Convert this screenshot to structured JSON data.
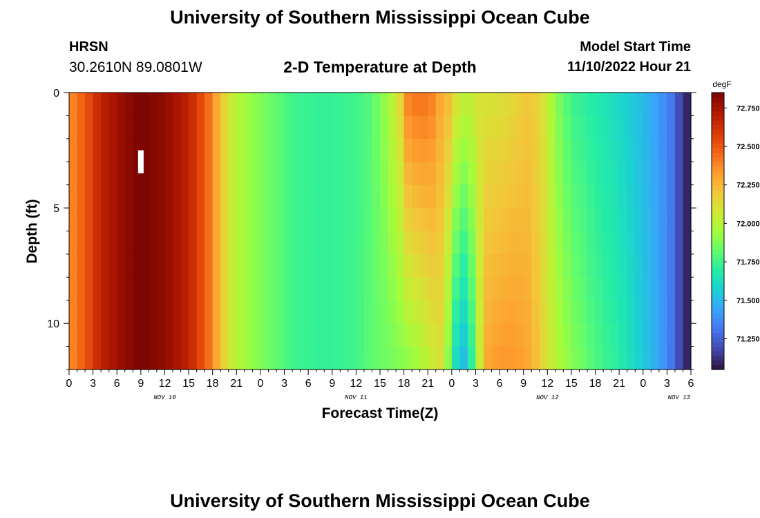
{
  "header": {
    "title": "University of Southern Mississippi Ocean Cube",
    "station": "HRSN",
    "coords": "30.2610N  89.0801W",
    "subtitle": "2-D Temperature at Depth",
    "model_start_label": "Model Start Time",
    "model_start_value": "11/10/2022 Hour 21",
    "footer_title": "University of Southern Mississippi Ocean Cube"
  },
  "chart_data": {
    "type": "heatmap",
    "xlabel": "Forecast Time(Z)",
    "ylabel": "Depth (ft)",
    "x_tick_labels": [
      "0",
      "3",
      "6",
      "9",
      "12",
      "15",
      "18",
      "21",
      "0",
      "3",
      "6",
      "9",
      "12",
      "15",
      "18",
      "21",
      "0",
      "3",
      "6",
      "9",
      "12",
      "15",
      "18",
      "21",
      "0",
      "3",
      "6"
    ],
    "x_range_hours": [
      0,
      78
    ],
    "day_labels": [
      {
        "label": "NOV 10",
        "hour": 12
      },
      {
        "label": "NOV 11",
        "hour": 36
      },
      {
        "label": "NOV 12",
        "hour": 60
      },
      {
        "label": "NOV 13",
        "hour": 76.5
      }
    ],
    "y_ticks": [
      0,
      5,
      10
    ],
    "y_range": [
      0,
      12
    ],
    "y_inverted": true,
    "colorbar": {
      "unit": "degF",
      "min": 71.05,
      "max": 72.85,
      "ticks": [
        "72.750",
        "72.500",
        "72.250",
        "72.000",
        "71.750",
        "71.500",
        "71.250"
      ],
      "tick_values": [
        72.75,
        72.5,
        72.25,
        72.0,
        71.75,
        71.5,
        71.25
      ]
    },
    "colormap": [
      "#30123b",
      "#4145ab",
      "#4675ed",
      "#39a2fc",
      "#1bcfd4",
      "#24eca6",
      "#61fc6c",
      "#a4fc3b",
      "#d1e834",
      "#f3c63a",
      "#fe9b2d",
      "#f36315",
      "#d93806",
      "#b11901",
      "#7a0402"
    ],
    "depth_levels": 12,
    "time_profiles": [
      {
        "hour": 0,
        "surface": 72.35,
        "bottom": 72.35
      },
      {
        "hour": 2,
        "surface": 72.5,
        "bottom": 72.5
      },
      {
        "hour": 4,
        "surface": 72.68,
        "bottom": 72.68
      },
      {
        "hour": 7,
        "surface": 72.8,
        "bottom": 72.8
      },
      {
        "hour": 9,
        "surface": 72.85,
        "bottom": 72.85
      },
      {
        "hour": 12,
        "surface": 72.8,
        "bottom": 72.8
      },
      {
        "hour": 15,
        "surface": 72.68,
        "bottom": 72.68
      },
      {
        "hour": 17,
        "surface": 72.5,
        "bottom": 72.5
      },
      {
        "hour": 18.5,
        "surface": 72.3,
        "bottom": 72.3
      },
      {
        "hour": 20,
        "surface": 72.08,
        "bottom": 72.08
      },
      {
        "hour": 22,
        "surface": 71.95,
        "bottom": 71.95
      },
      {
        "hour": 25,
        "surface": 71.85,
        "bottom": 71.85
      },
      {
        "hour": 28,
        "surface": 71.75,
        "bottom": 71.75
      },
      {
        "hour": 32,
        "surface": 71.72,
        "bottom": 71.72
      },
      {
        "hour": 36,
        "surface": 71.75,
        "bottom": 71.75
      },
      {
        "hour": 38,
        "surface": 71.8,
        "bottom": 71.82
      },
      {
        "hour": 40,
        "surface": 71.95,
        "bottom": 71.85
      },
      {
        "hour": 41.5,
        "surface": 72.15,
        "bottom": 71.88
      },
      {
        "hour": 42.5,
        "surface": 72.4,
        "bottom": 71.9
      },
      {
        "hour": 44,
        "surface": 72.45,
        "bottom": 71.95
      },
      {
        "hour": 45.5,
        "surface": 72.4,
        "bottom": 72.05
      },
      {
        "hour": 46.5,
        "surface": 72.3,
        "bottom": 72.1
      },
      {
        "hour": 47.5,
        "surface": 72.25,
        "bottom": 71.9
      },
      {
        "hour": 48.5,
        "surface": 72.12,
        "bottom": 71.6
      },
      {
        "hour": 49.5,
        "surface": 72.05,
        "bottom": 71.5
      },
      {
        "hour": 50.5,
        "surface": 72.05,
        "bottom": 71.7
      },
      {
        "hour": 51.5,
        "surface": 72.1,
        "bottom": 72.05
      },
      {
        "hour": 52.5,
        "surface": 72.1,
        "bottom": 72.3
      },
      {
        "hour": 54,
        "surface": 72.1,
        "bottom": 72.35
      },
      {
        "hour": 56,
        "surface": 72.15,
        "bottom": 72.35
      },
      {
        "hour": 57.5,
        "surface": 72.2,
        "bottom": 72.3
      },
      {
        "hour": 59,
        "surface": 72.15,
        "bottom": 72.2
      },
      {
        "hour": 60,
        "surface": 72.05,
        "bottom": 72.1
      },
      {
        "hour": 61,
        "surface": 71.9,
        "bottom": 72.0
      },
      {
        "hour": 63,
        "surface": 71.75,
        "bottom": 71.9
      },
      {
        "hour": 66,
        "surface": 71.68,
        "bottom": 71.78
      },
      {
        "hour": 69,
        "surface": 71.6,
        "bottom": 71.7
      },
      {
        "hour": 72,
        "surface": 71.5,
        "bottom": 71.55
      },
      {
        "hour": 74,
        "surface": 71.42,
        "bottom": 71.45
      },
      {
        "hour": 75.5,
        "surface": 71.32,
        "bottom": 71.32
      },
      {
        "hour": 76.5,
        "surface": 71.2,
        "bottom": 71.2
      },
      {
        "hour": 77.5,
        "surface": 71.1,
        "bottom": 71.1
      },
      {
        "hour": 78,
        "surface": 71.08,
        "bottom": 71.08
      }
    ],
    "marker": {
      "hour": 9,
      "depth_top": 2.5,
      "depth_bottom": 3.5,
      "color": "#ffffff"
    }
  }
}
